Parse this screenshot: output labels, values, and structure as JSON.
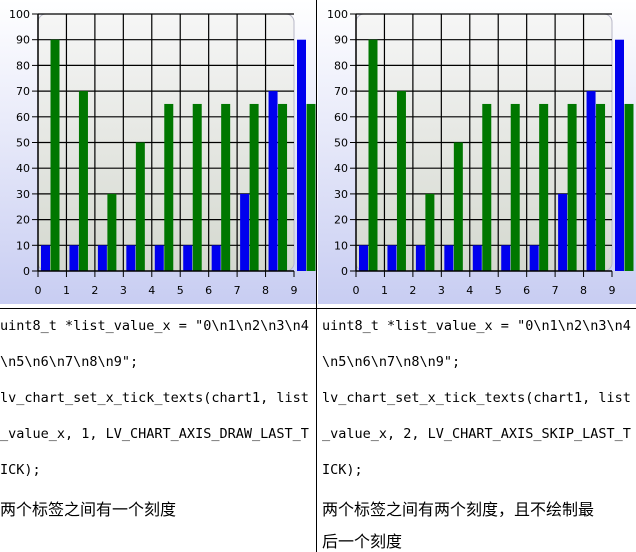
{
  "chart_data": [
    {
      "type": "bar",
      "categories": [
        "0",
        "1",
        "2",
        "3",
        "4",
        "5",
        "6",
        "7",
        "8",
        "9"
      ],
      "x_tick_labels": [
        "0",
        "1",
        "2",
        "3",
        "4",
        "5",
        "6",
        "7",
        "8",
        "9"
      ],
      "y_tick_labels": [
        "0",
        "10",
        "20",
        "30",
        "40",
        "50",
        "60",
        "70",
        "80",
        "90",
        "100"
      ],
      "ylim": [
        0,
        100
      ],
      "grid": true,
      "series": [
        {
          "color": "#0000ee",
          "values": [
            10,
            10,
            10,
            10,
            10,
            10,
            10,
            30,
            70,
            90
          ]
        },
        {
          "color": "#007700",
          "values": [
            90,
            70,
            30,
            50,
            65,
            65,
            65,
            65,
            65,
            65
          ]
        }
      ]
    },
    {
      "type": "bar",
      "categories": [
        "0",
        "1",
        "2",
        "3",
        "4",
        "5",
        "6",
        "7",
        "8",
        "9"
      ],
      "x_tick_labels": [
        "0",
        "1",
        "2",
        "3",
        "4",
        "5",
        "6",
        "7",
        "8",
        "9"
      ],
      "y_tick_labels": [
        "0",
        "10",
        "20",
        "30",
        "40",
        "50",
        "60",
        "70",
        "80",
        "90",
        "100"
      ],
      "ylim": [
        0,
        100
      ],
      "grid": true,
      "series": [
        {
          "color": "#0000ee",
          "values": [
            10,
            10,
            10,
            10,
            10,
            10,
            10,
            30,
            70,
            90
          ]
        },
        {
          "color": "#007700",
          "values": [
            90,
            70,
            30,
            50,
            65,
            65,
            65,
            65,
            65,
            65
          ]
        }
      ]
    }
  ],
  "left_text": {
    "code": [
      "uint8_t *list_value_x = \"0\\n1\\n2\\n3\\n4",
      "\\n5\\n6\\n7\\n8\\n9\";",
      "lv_chart_set_x_tick_texts(chart1, list",
      "_value_x, 1, LV_CHART_AXIS_DRAW_LAST_T",
      "ICK);"
    ],
    "desc": [
      "两个标签之间有一个刻度"
    ]
  },
  "right_text": {
    "code": [
      "uint8_t *list_value_x = \"0\\n1\\n2\\n3\\n4",
      "\\n5\\n6\\n7\\n8\\n9\";",
      "lv_chart_set_x_tick_texts(chart1, list",
      "_value_x, 2, LV_CHART_AXIS_SKIP_LAST_T",
      "ICK);"
    ],
    "desc": [
      "两个标签之间有两个刻度，且不绘制最",
      "后一个刻度"
    ]
  }
}
